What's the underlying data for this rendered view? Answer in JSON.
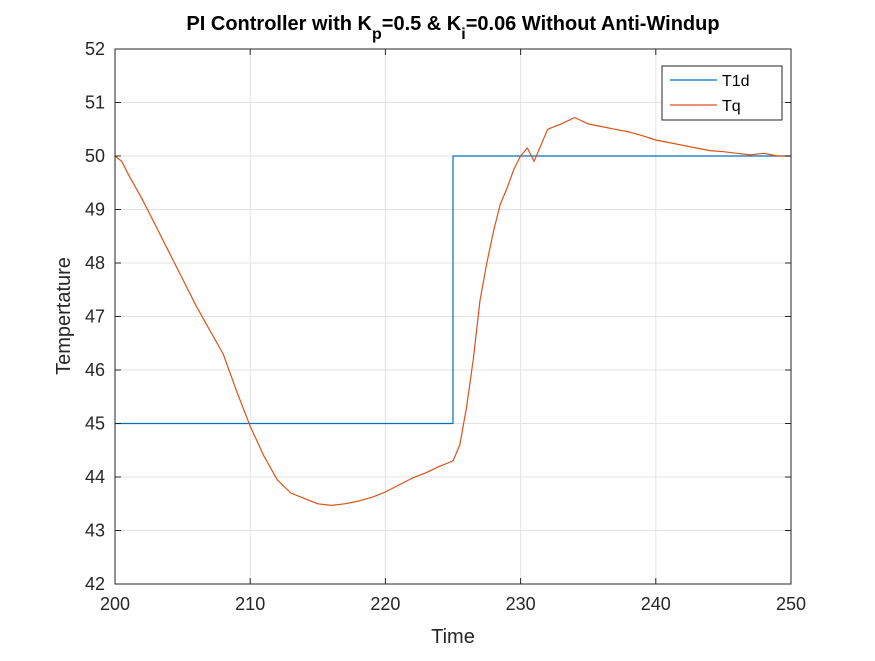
{
  "chart_data": {
    "type": "line",
    "title": {
      "parts": [
        {
          "text": "PI Controller with K",
          "sub": false
        },
        {
          "text": "p",
          "sub": true
        },
        {
          "text": "=0.5 & K",
          "sub": false
        },
        {
          "text": "i",
          "sub": true
        },
        {
          "text": "=0.06 Without Anti-Windup",
          "sub": false
        }
      ]
    },
    "xlabel": "Time",
    "ylabel": "Tempertature",
    "xlim": [
      200,
      250
    ],
    "ylim": [
      42,
      52
    ],
    "xticks": [
      200,
      210,
      220,
      230,
      240,
      250
    ],
    "yticks": [
      42,
      43,
      44,
      45,
      46,
      47,
      48,
      49,
      50,
      51,
      52
    ],
    "grid": true,
    "legend_position": "top-right",
    "series": [
      {
        "name": "T1d",
        "color": "#0072BD",
        "step": true,
        "points": [
          [
            200,
            45
          ],
          [
            225,
            45
          ],
          [
            225,
            50
          ],
          [
            250,
            50
          ]
        ]
      },
      {
        "name": "Tq",
        "color": "#D95319",
        "step": false,
        "points": [
          [
            200,
            50.0
          ],
          [
            200.5,
            49.9
          ],
          [
            201,
            49.65
          ],
          [
            202,
            49.2
          ],
          [
            203,
            48.7
          ],
          [
            204,
            48.2
          ],
          [
            205,
            47.7
          ],
          [
            206,
            47.2
          ],
          [
            207,
            46.75
          ],
          [
            208,
            46.3
          ],
          [
            209,
            45.6
          ],
          [
            210,
            44.95
          ],
          [
            211,
            44.4
          ],
          [
            212,
            43.95
          ],
          [
            213,
            43.7
          ],
          [
            214,
            43.6
          ],
          [
            215,
            43.5
          ],
          [
            216,
            43.47
          ],
          [
            217,
            43.5
          ],
          [
            218,
            43.55
          ],
          [
            219,
            43.62
          ],
          [
            220,
            43.72
          ],
          [
            221,
            43.85
          ],
          [
            222,
            43.98
          ],
          [
            223,
            44.08
          ],
          [
            224,
            44.2
          ],
          [
            225,
            44.3
          ],
          [
            225.5,
            44.6
          ],
          [
            226,
            45.3
          ],
          [
            226.5,
            46.2
          ],
          [
            227,
            47.3
          ],
          [
            227.5,
            48.0
          ],
          [
            228,
            48.6
          ],
          [
            228.5,
            49.1
          ],
          [
            229,
            49.4
          ],
          [
            229.5,
            49.75
          ],
          [
            230,
            50.0
          ],
          [
            230.5,
            50.15
          ],
          [
            231,
            49.9
          ],
          [
            231.5,
            50.2
          ],
          [
            232,
            50.5
          ],
          [
            233,
            50.6
          ],
          [
            234,
            50.72
          ],
          [
            235,
            50.6
          ],
          [
            236,
            50.55
          ],
          [
            237,
            50.5
          ],
          [
            238,
            50.45
          ],
          [
            239,
            50.38
          ],
          [
            240,
            50.3
          ],
          [
            241,
            50.25
          ],
          [
            242,
            50.2
          ],
          [
            243,
            50.15
          ],
          [
            244,
            50.1
          ],
          [
            245,
            50.08
          ],
          [
            246,
            50.05
          ],
          [
            247,
            50.02
          ],
          [
            248,
            50.05
          ],
          [
            249,
            50.0
          ],
          [
            250,
            50.0
          ]
        ]
      }
    ]
  }
}
